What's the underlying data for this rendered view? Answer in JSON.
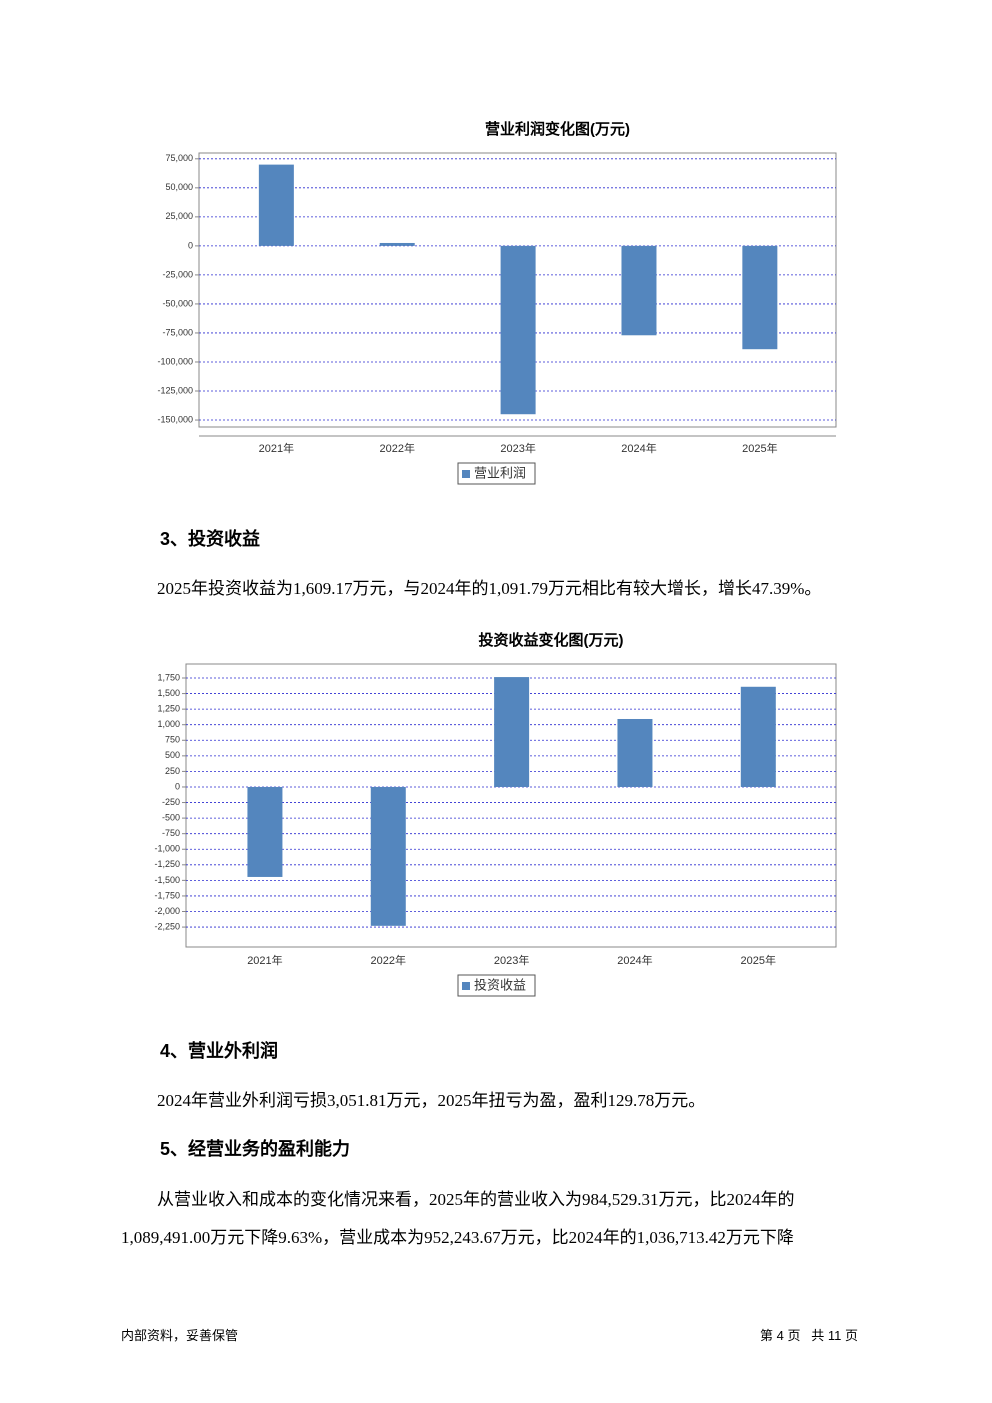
{
  "chart_data": [
    {
      "type": "bar",
      "title": "营业利润变化图(万元)",
      "categories": [
        "2021年",
        "2022年",
        "2023年",
        "2024年",
        "2025年"
      ],
      "series": [
        {
          "name": "营业利润",
          "color": "#5486be",
          "values": [
            70000,
            2500,
            -145000,
            -77000,
            -89000
          ]
        }
      ],
      "ylim": [
        -156000,
        80000
      ],
      "yticks": [
        {
          "value": 75000,
          "label": "75,000"
        },
        {
          "value": 50000,
          "label": "50,000"
        },
        {
          "value": 25000,
          "label": "25,000"
        },
        0,
        {
          "value": -25000,
          "label": "-25,000"
        },
        {
          "value": -50000,
          "label": "-50,000"
        },
        {
          "value": -75000,
          "label": "-75,000"
        },
        {
          "value": -100000,
          "label": "-100,000"
        },
        {
          "value": -125000,
          "label": "-125,000"
        },
        {
          "value": -150000,
          "label": "-150,000"
        }
      ],
      "grid": true
    },
    {
      "type": "bar",
      "title": "投资收益变化图(万元)",
      "categories": [
        "2021年",
        "2022年",
        "2023年",
        "2024年",
        "2025年"
      ],
      "series": [
        {
          "name": "投资收益",
          "color": "#5486be",
          "values": [
            -1445,
            -2230,
            1765,
            1091.79,
            1609.17
          ]
        }
      ],
      "ylim": [
        -2570,
        1975
      ],
      "yticks": [
        {
          "value": 1750,
          "label": "1,750"
        },
        {
          "value": 1500,
          "label": "1,500"
        },
        {
          "value": 1250,
          "label": "1,250"
        },
        {
          "value": 1000,
          "label": "1,000"
        },
        750,
        500,
        250,
        0,
        -250,
        -500,
        -750,
        {
          "value": -1000,
          "label": "-1,000"
        },
        {
          "value": -1250,
          "label": "-1,250"
        },
        {
          "value": -1500,
          "label": "-1,500"
        },
        {
          "value": -1750,
          "label": "-1,750"
        },
        {
          "value": -2000,
          "label": "-2,000"
        },
        {
          "value": -2250,
          "label": "-2,250"
        }
      ],
      "grid": true
    }
  ],
  "sections": [
    {
      "heading": "3、投资收益",
      "paragraphs": [
        "2025年投资收益为1,609.17万元，与2024年的1,091.79万元相比有较大增长，增长47.39%。"
      ]
    },
    {
      "heading": "4、营业外利润",
      "paragraphs": [
        "2024年营业外利润亏损3,051.81万元，2025年扭亏为盈，盈利129.78万元。"
      ]
    },
    {
      "heading": "5、经营业务的盈利能力",
      "paragraphs": [
        "从营业收入和成本的变化情况来看，2025年的营业收入为984,529.31万元，比2024年的",
        "1,089,491.00万元下降9.63%，营业成本为952,243.67万元，比2024年的1,036,713.42万元下降"
      ]
    }
  ],
  "footer": {
    "left": "内部资料，妥善保管",
    "right": "第 4 页   共 11 页"
  }
}
